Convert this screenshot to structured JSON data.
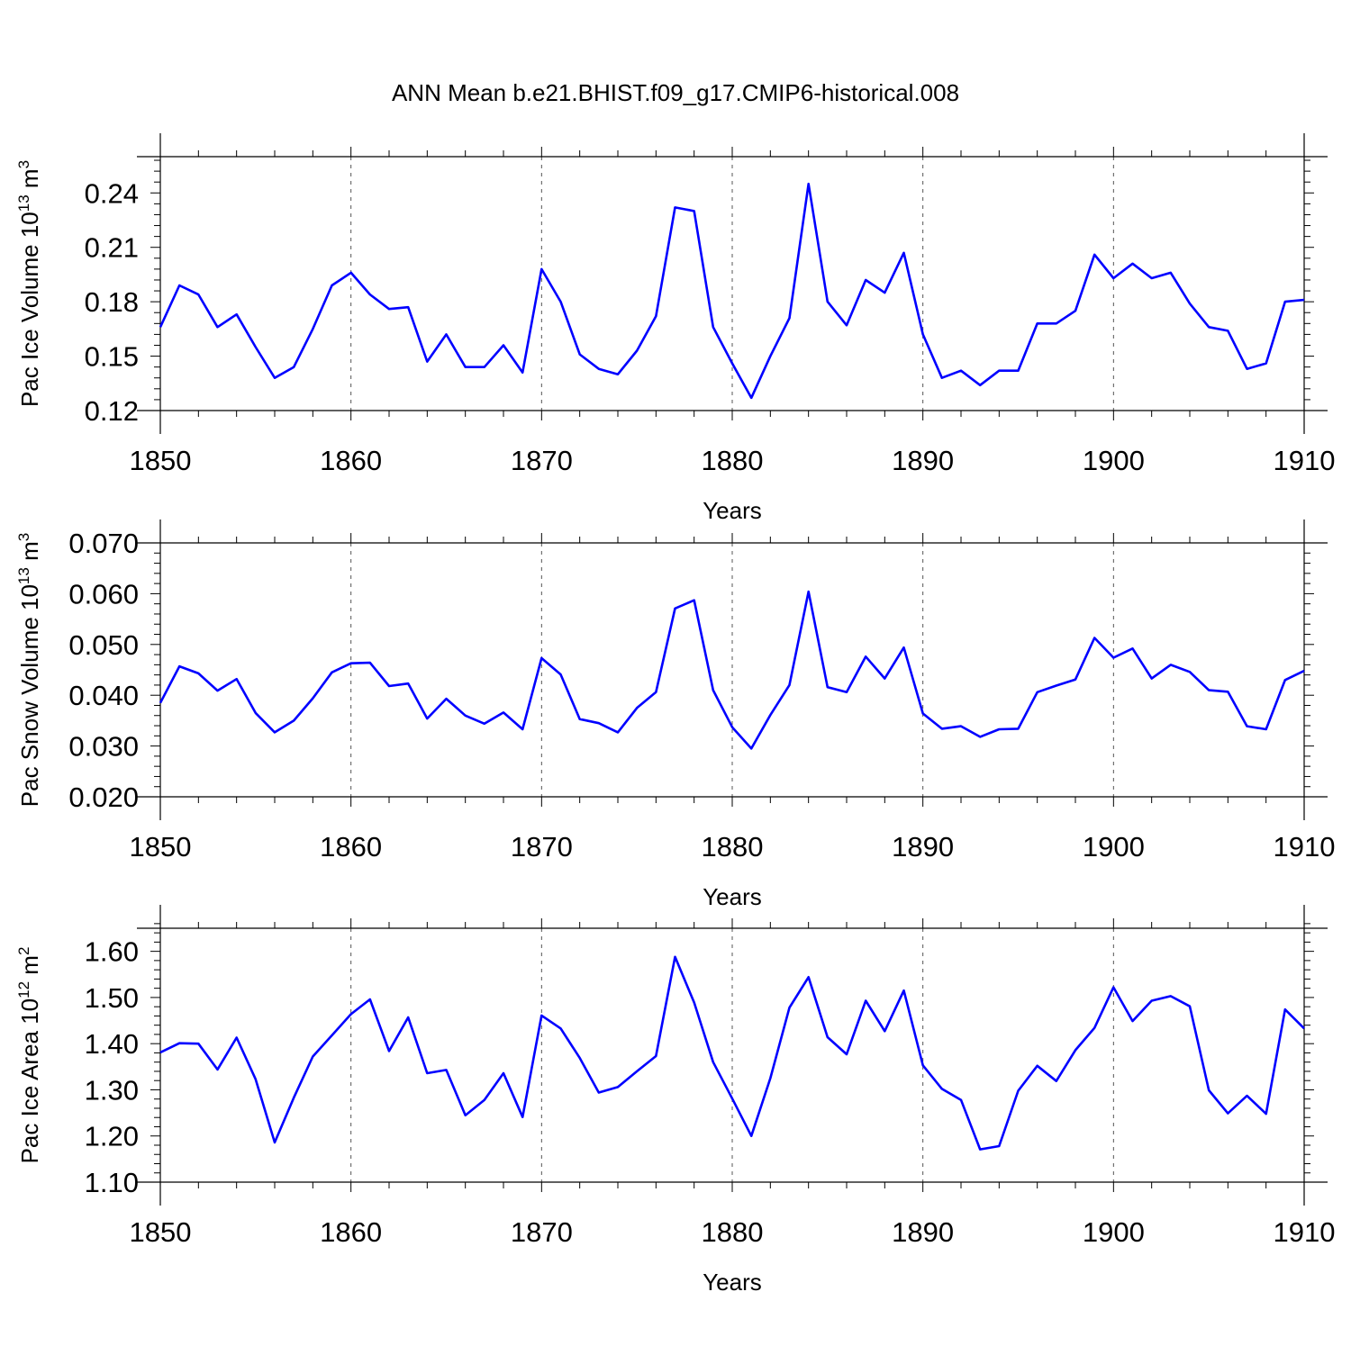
{
  "title": "ANN Mean b.e21.BHIST.f09_g17.CMIP6-historical.008",
  "line_color": "#0000ff",
  "chart_data": [
    {
      "type": "line",
      "ylabel_main": "Pac Ice Volume 10",
      "ylabel_exp": "13",
      "ylabel_unit": " m",
      "ylabel_unit_exp": "3",
      "xlabel": "Years",
      "xlim": [
        1850,
        1910
      ],
      "ylim": [
        0.12,
        0.26
      ],
      "y_ticks": [
        "0.12",
        "0.15",
        "0.18",
        "0.21",
        "0.24"
      ],
      "x_ticks": [
        "1850",
        "1860",
        "1870",
        "1880",
        "1890",
        "1900",
        "1910"
      ],
      "grid": "dashed vertical lines every 10 years",
      "x": [
        1850,
        1851,
        1852,
        1853,
        1854,
        1855,
        1856,
        1857,
        1858,
        1859,
        1860,
        1861,
        1862,
        1863,
        1864,
        1865,
        1866,
        1867,
        1868,
        1869,
        1870,
        1871,
        1872,
        1873,
        1874,
        1875,
        1876,
        1877,
        1878,
        1879,
        1880,
        1881,
        1882,
        1883,
        1884,
        1885,
        1886,
        1887,
        1888,
        1889,
        1890,
        1891,
        1892,
        1893,
        1894,
        1895,
        1896,
        1897,
        1898,
        1899,
        1900,
        1901,
        1902,
        1903,
        1904,
        1905,
        1906,
        1907,
        1908,
        1909,
        1910
      ],
      "values": [
        0.166,
        0.189,
        0.184,
        0.166,
        0.173,
        0.155,
        0.138,
        0.144,
        0.165,
        0.189,
        0.196,
        0.184,
        0.176,
        0.177,
        0.147,
        0.162,
        0.144,
        0.144,
        0.156,
        0.141,
        0.198,
        0.18,
        0.151,
        0.143,
        0.14,
        0.153,
        0.172,
        0.232,
        0.23,
        0.166,
        0.146,
        0.127,
        0.15,
        0.171,
        0.245,
        0.18,
        0.167,
        0.192,
        0.185,
        0.207,
        0.162,
        0.138,
        0.142,
        0.134,
        0.142,
        0.142,
        0.168,
        0.168,
        0.175,
        0.206,
        0.193,
        0.201,
        0.193,
        0.196,
        0.179,
        0.166,
        0.164,
        0.143,
        0.146,
        0.18,
        0.181
      ]
    },
    {
      "type": "line",
      "ylabel_main": "Pac Snow Volume 10",
      "ylabel_exp": "13",
      "ylabel_unit": " m",
      "ylabel_unit_exp": "3",
      "xlabel": "Years",
      "xlim": [
        1850,
        1910
      ],
      "ylim": [
        0.02,
        0.07
      ],
      "y_ticks": [
        "0.020",
        "0.030",
        "0.040",
        "0.050",
        "0.060",
        "0.070"
      ],
      "x_ticks": [
        "1850",
        "1860",
        "1870",
        "1880",
        "1890",
        "1900",
        "1910"
      ],
      "grid": "dashed vertical lines every 10 years",
      "x": [
        1850,
        1851,
        1852,
        1853,
        1854,
        1855,
        1856,
        1857,
        1858,
        1859,
        1860,
        1861,
        1862,
        1863,
        1864,
        1865,
        1866,
        1867,
        1868,
        1869,
        1870,
        1871,
        1872,
        1873,
        1874,
        1875,
        1876,
        1877,
        1878,
        1879,
        1880,
        1881,
        1882,
        1883,
        1884,
        1885,
        1886,
        1887,
        1888,
        1889,
        1890,
        1891,
        1892,
        1893,
        1894,
        1895,
        1896,
        1897,
        1898,
        1899,
        1900,
        1901,
        1902,
        1903,
        1904,
        1905,
        1906,
        1907,
        1908,
        1909,
        1910
      ],
      "values": [
        0.0385,
        0.0457,
        0.0443,
        0.0409,
        0.0432,
        0.0365,
        0.0327,
        0.035,
        0.0394,
        0.0445,
        0.0463,
        0.0464,
        0.0418,
        0.0423,
        0.0354,
        0.0393,
        0.036,
        0.0344,
        0.0366,
        0.0333,
        0.0473,
        0.0441,
        0.0353,
        0.0345,
        0.0327,
        0.0375,
        0.0406,
        0.0571,
        0.0587,
        0.041,
        0.0337,
        0.0295,
        0.0361,
        0.042,
        0.0604,
        0.0416,
        0.0406,
        0.0476,
        0.0433,
        0.0494,
        0.0364,
        0.0334,
        0.0339,
        0.0318,
        0.0333,
        0.0334,
        0.0406,
        0.0419,
        0.0431,
        0.0513,
        0.0474,
        0.0492,
        0.0433,
        0.046,
        0.0446,
        0.041,
        0.0407,
        0.0339,
        0.0333,
        0.043,
        0.0448
      ]
    },
    {
      "type": "line",
      "ylabel_main": "Pac Ice Area 10",
      "ylabel_exp": "12",
      "ylabel_unit": " m",
      "ylabel_unit_exp": "2",
      "xlabel": "Years",
      "xlim": [
        1850,
        1910
      ],
      "ylim": [
        1.1,
        1.65
      ],
      "y_ticks": [
        "1.10",
        "1.20",
        "1.30",
        "1.40",
        "1.50",
        "1.60"
      ],
      "x_ticks": [
        "1850",
        "1860",
        "1870",
        "1880",
        "1890",
        "1900",
        "1910"
      ],
      "grid": "dashed vertical lines every 10 years",
      "x": [
        1850,
        1851,
        1852,
        1853,
        1854,
        1855,
        1856,
        1857,
        1858,
        1859,
        1860,
        1861,
        1862,
        1863,
        1864,
        1865,
        1866,
        1867,
        1868,
        1869,
        1870,
        1871,
        1872,
        1873,
        1874,
        1875,
        1876,
        1877,
        1878,
        1879,
        1880,
        1881,
        1882,
        1883,
        1884,
        1885,
        1886,
        1887,
        1888,
        1889,
        1890,
        1891,
        1892,
        1893,
        1894,
        1895,
        1896,
        1897,
        1898,
        1899,
        1900,
        1901,
        1902,
        1903,
        1904,
        1905,
        1906,
        1907,
        1908,
        1909,
        1910
      ],
      "values": [
        1.381,
        1.401,
        1.4,
        1.344,
        1.413,
        1.323,
        1.186,
        1.283,
        1.372,
        1.418,
        1.464,
        1.496,
        1.384,
        1.457,
        1.336,
        1.343,
        1.245,
        1.278,
        1.336,
        1.241,
        1.461,
        1.433,
        1.369,
        1.294,
        1.306,
        1.34,
        1.373,
        1.588,
        1.489,
        1.36,
        1.281,
        1.2,
        1.325,
        1.478,
        1.544,
        1.414,
        1.377,
        1.493,
        1.427,
        1.515,
        1.353,
        1.302,
        1.278,
        1.171,
        1.178,
        1.298,
        1.352,
        1.319,
        1.386,
        1.434,
        1.522,
        1.449,
        1.493,
        1.503,
        1.481,
        1.299,
        1.249,
        1.287,
        1.248,
        1.474,
        1.433
      ]
    }
  ]
}
